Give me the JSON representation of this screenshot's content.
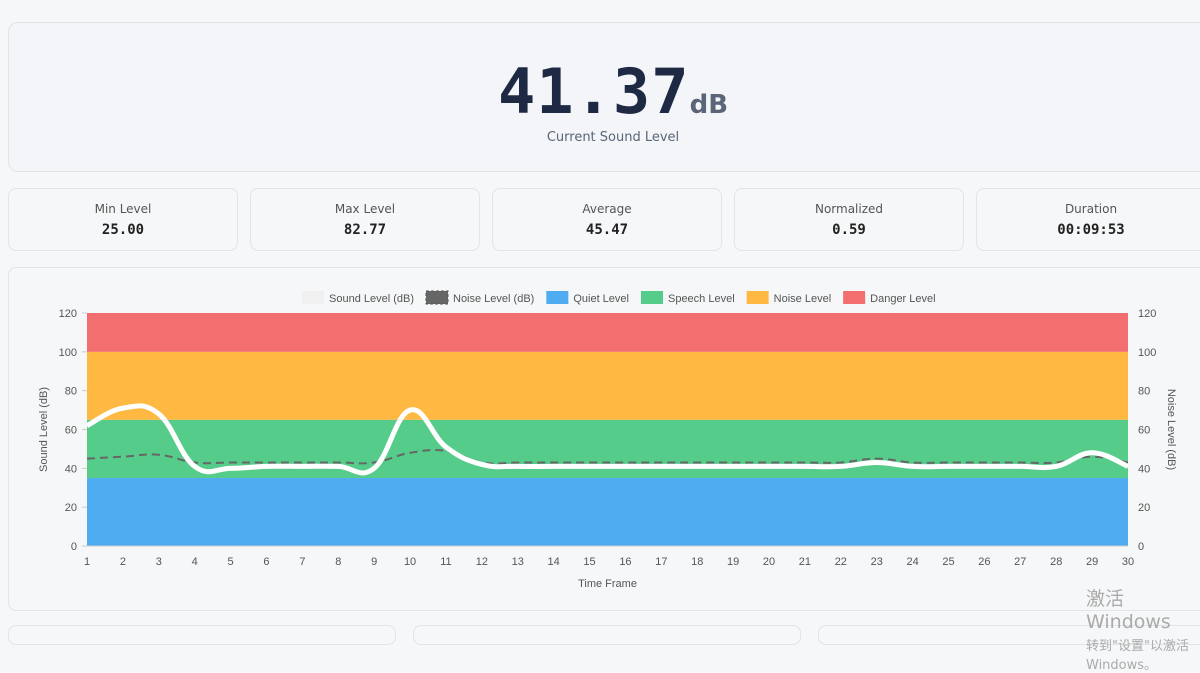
{
  "hero": {
    "value": "41.37",
    "unit": "dB",
    "label": "Current Sound Level"
  },
  "stats": [
    {
      "label": "Min Level",
      "value": "25.00"
    },
    {
      "label": "Max Level",
      "value": "82.77"
    },
    {
      "label": "Average",
      "value": "45.47"
    },
    {
      "label": "Normalized",
      "value": "0.59"
    },
    {
      "label": "Duration",
      "value": "00:09:53"
    }
  ],
  "chart_data": {
    "type": "line",
    "xlabel": "Time Frame",
    "ylabel": "Sound Level (dB)",
    "y2label": "Noise Level (dB)",
    "x": [
      1,
      2,
      3,
      4,
      5,
      6,
      7,
      8,
      9,
      10,
      11,
      12,
      13,
      14,
      15,
      16,
      17,
      18,
      19,
      20,
      21,
      22,
      23,
      24,
      25,
      26,
      27,
      28,
      29,
      30
    ],
    "ylim": [
      0,
      120
    ],
    "yticks": [
      0,
      20,
      40,
      60,
      80,
      100,
      120
    ],
    "series": [
      {
        "name": "Sound Level (dB)",
        "color": "#ffffff",
        "values": [
          62,
          71,
          68,
          41,
          40,
          41,
          41,
          41,
          40,
          70,
          51,
          42,
          41,
          41,
          41,
          41,
          41,
          41,
          41,
          41,
          41,
          41,
          43,
          41,
          41,
          41,
          41,
          41,
          48,
          41
        ]
      },
      {
        "name": "Noise Level (dB)",
        "color": "#666666",
        "values": [
          45,
          46,
          47,
          43,
          43,
          43,
          43,
          43,
          43,
          48,
          49,
          43,
          43,
          43,
          43,
          43,
          43,
          43,
          43,
          43,
          43,
          43,
          45,
          43,
          43,
          43,
          43,
          43,
          46,
          43
        ]
      }
    ],
    "bands": [
      {
        "name": "Quiet Level",
        "from": 0,
        "to": 35,
        "color": "#4facf0"
      },
      {
        "name": "Speech Level",
        "from": 35,
        "to": 65,
        "color": "#56cc8a"
      },
      {
        "name": "Noise Level",
        "from": 65,
        "to": 100,
        "color": "#ffb842"
      },
      {
        "name": "Danger Level",
        "from": 100,
        "to": 120,
        "color": "#f36e6e"
      }
    ],
    "legend": "top"
  },
  "watermark": {
    "line1": "激活 Windows",
    "line2": "转到\"设置\"以激活 Windows。"
  }
}
